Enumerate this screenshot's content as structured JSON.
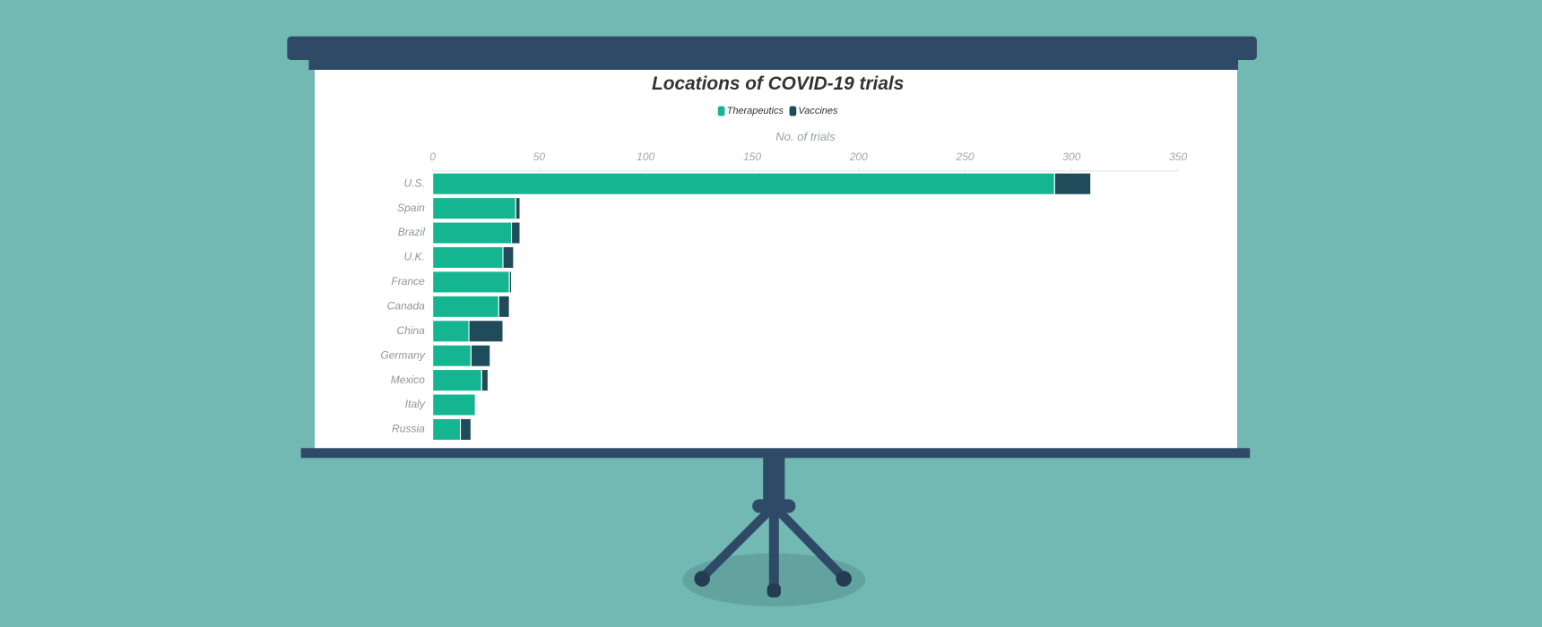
{
  "chart_data": {
    "type": "bar",
    "orientation": "horizontal",
    "stacked": true,
    "title": "Locations of COVID-19 trials",
    "x_label": "No. of trials",
    "categories": [
      "U.S.",
      "Spain",
      "Brazil",
      "U.K.",
      "France",
      "Canada",
      "China",
      "Germany",
      "Mexico",
      "Italy",
      "Russia"
    ],
    "series": [
      {
        "name": "Therapeutics",
        "color": "#16b592",
        "values": [
          292,
          39,
          37,
          33,
          36,
          31,
          17,
          18,
          23,
          20,
          13
        ]
      },
      {
        "name": "Vaccines",
        "color": "#1f4b5a",
        "values": [
          17,
          2,
          4,
          5,
          1,
          5,
          16,
          9,
          3,
          0,
          5
        ]
      }
    ],
    "xlim": [
      0,
      350
    ],
    "xticks": [
      0,
      50,
      100,
      150,
      200,
      250,
      300,
      350
    ]
  }
}
